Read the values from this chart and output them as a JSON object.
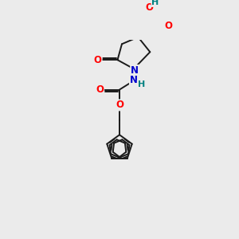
{
  "background_color": "#ebebeb",
  "bond_color": "#1a1a1a",
  "bond_width": 1.4,
  "atom_colors": {
    "O": "#ff0000",
    "N": "#0000cc",
    "H": "#008080",
    "C": "#1a1a1a"
  },
  "figsize": [
    3.0,
    3.0
  ],
  "dpi": 100,
  "xlim": [
    0,
    10
  ],
  "ylim": [
    0,
    10
  ]
}
